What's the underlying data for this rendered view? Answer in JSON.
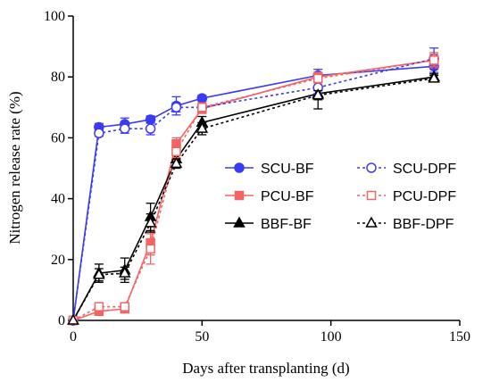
{
  "chart_data": {
    "type": "line",
    "xlabel": "Days after transplanting (d)",
    "ylabel": "Nitrogen release rate (%)",
    "xlim": [
      0,
      150
    ],
    "ylim": [
      0,
      100
    ],
    "xticks": [
      0,
      50,
      100,
      150
    ],
    "yticks": [
      0,
      20,
      40,
      60,
      80,
      100
    ],
    "grid": false,
    "legend_position": "center-right, two columns",
    "x": [
      0,
      10,
      20,
      30,
      40,
      50,
      95,
      140
    ],
    "series": [
      {
        "name": "SCU-BF",
        "color": "#3b3bf5",
        "marker": "circle",
        "filled": true,
        "dashed": false,
        "values": [
          0,
          63.5,
          64.5,
          66,
          70.5,
          73,
          80.5,
          83.5
        ],
        "errors": [
          0,
          1.2,
          2.0,
          1.2,
          3.0,
          1.0,
          2.0,
          2.0
        ]
      },
      {
        "name": "PCU-BF",
        "color": "#f26565",
        "marker": "square",
        "filled": true,
        "dashed": false,
        "values": [
          0,
          3,
          3.8,
          25.5,
          58,
          69.5,
          80,
          85.5
        ],
        "errors": [
          0,
          0.5,
          0.6,
          4.0,
          2.0,
          1.5,
          1.5,
          2.5
        ]
      },
      {
        "name": "BBF-BF",
        "color": "#000000",
        "marker": "triangle",
        "filled": true,
        "dashed": false,
        "values": [
          0,
          15.5,
          16.5,
          34,
          53,
          65,
          74.5,
          80
        ],
        "errors": [
          0,
          3.0,
          4.0,
          4.5,
          2.0,
          2.0,
          5.0,
          1.0
        ]
      },
      {
        "name": "SCU-DPF",
        "color": "#3b3bf5",
        "marker": "circle",
        "filled": false,
        "dashed": true,
        "values": [
          0,
          61.5,
          63,
          63,
          70,
          70,
          76.5,
          86
        ],
        "errors": [
          0,
          1.0,
          1.5,
          2.0,
          1.5,
          1.0,
          2.0,
          3.5
        ]
      },
      {
        "name": "PCU-DPF",
        "color": "#f26565",
        "marker": "square",
        "filled": false,
        "dashed": true,
        "values": [
          0,
          4.5,
          4.5,
          23.5,
          55.5,
          70,
          79.5,
          85.5
        ],
        "errors": [
          0,
          0.5,
          0.5,
          5.0,
          2.0,
          1.5,
          1.5,
          2.0
        ]
      },
      {
        "name": "BBF-DPF",
        "color": "#000000",
        "marker": "triangle",
        "filled": false,
        "dashed": true,
        "values": [
          0,
          15,
          15.5,
          32,
          51.5,
          63,
          74,
          79.5
        ],
        "errors": [
          0,
          2.0,
          2.0,
          3.0,
          1.5,
          2.0,
          1.5,
          1.0
        ]
      }
    ]
  }
}
